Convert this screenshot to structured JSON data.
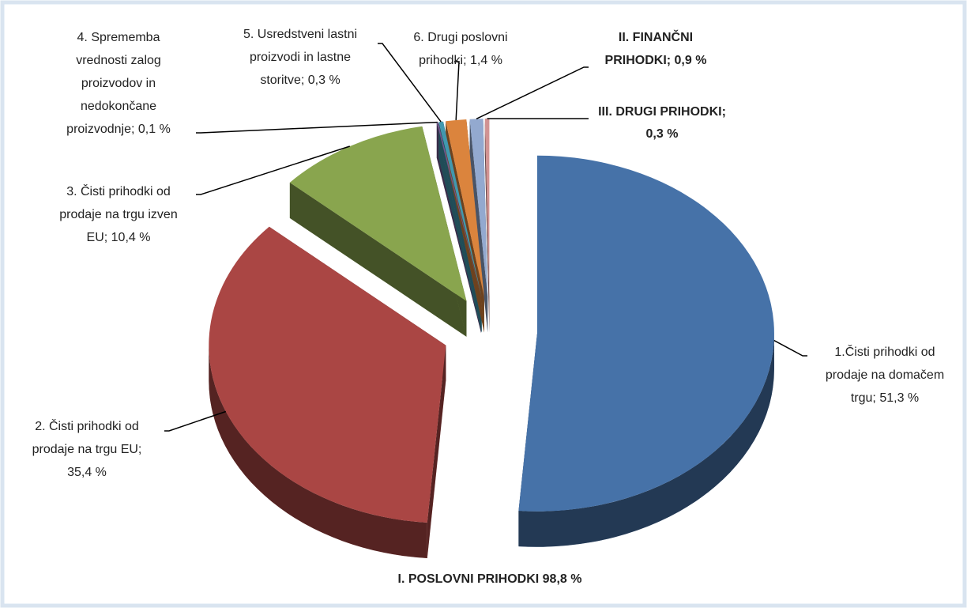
{
  "chart_data": {
    "type": "pie3d",
    "labels": [
      [
        "1.Čisti prihodki od",
        "prodaje na domačem",
        "trgu; 51,3 %"
      ],
      [
        "2. Čisti prihodki od",
        "prodaje na trgu EU;",
        "35,4 %"
      ],
      [
        "3. Čisti prihodki od",
        "prodaje na trgu izven",
        "EU; 10,4 %"
      ],
      [
        "4. Sprememba",
        "vrednosti zalog",
        "proizvodov in",
        "nedokončane",
        "proizvodnje; 0,1 %"
      ],
      [
        "5. Usredstveni lastni",
        "proizvodi in lastne",
        "storitve; 0,3 %"
      ],
      [
        "6. Drugi poslovni",
        "prihodki; 1,4 %"
      ],
      [
        "II. FINANČNI",
        "PRIHODKI; 0,9 %"
      ],
      [
        "III. DRUGI PRIHODKI;",
        "0,3 %"
      ]
    ],
    "values": [
      51.3,
      35.4,
      10.4,
      0.1,
      0.3,
      1.4,
      0.9,
      0.3
    ],
    "colors": [
      "#4672a8",
      "#aa4644",
      "#89a54e",
      "#71588f",
      "#4198af",
      "#db843d",
      "#93a9cf",
      "#d19392"
    ],
    "annotation": "I. POSLOVNI PRIHODKI 98,8 %"
  }
}
